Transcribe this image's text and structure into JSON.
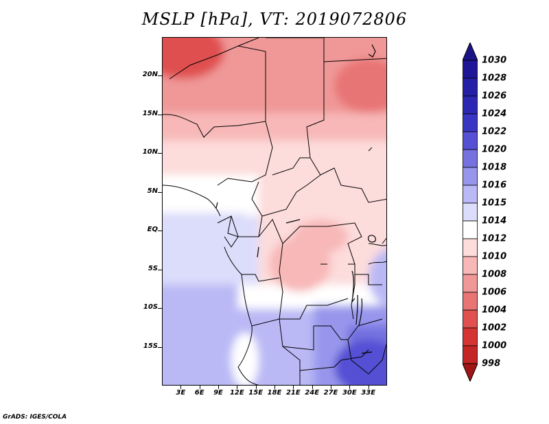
{
  "title": "MSLP [hPa], VT: 2019072806",
  "footer": "GrADS: IGES/COLA",
  "map": {
    "projection": "lat-lon",
    "lon_range_deg": [
      0,
      36
    ],
    "lat_range_deg": [
      -20,
      25
    ],
    "x_ticks": [
      {
        "value": 3,
        "label": "3E"
      },
      {
        "value": 6,
        "label": "6E"
      },
      {
        "value": 9,
        "label": "9E"
      },
      {
        "value": 12,
        "label": "12E"
      },
      {
        "value": 15,
        "label": "15E"
      },
      {
        "value": 18,
        "label": "18E"
      },
      {
        "value": 21,
        "label": "21E"
      },
      {
        "value": 24,
        "label": "24E"
      },
      {
        "value": 27,
        "label": "27E"
      },
      {
        "value": 30,
        "label": "30E"
      },
      {
        "value": 33,
        "label": "33E"
      }
    ],
    "y_ticks": [
      {
        "value": 20,
        "label": "20N"
      },
      {
        "value": 15,
        "label": "15N"
      },
      {
        "value": 10,
        "label": "10N"
      },
      {
        "value": 5,
        "label": "5N"
      },
      {
        "value": 0,
        "label": "EQ"
      },
      {
        "value": -5,
        "label": "5S"
      },
      {
        "value": -10,
        "label": "10S"
      },
      {
        "value": -15,
        "label": "15S"
      }
    ],
    "field_description": "lowest pressure (1004-1008 hPa) over the Sahara in the north, rising southward to 1022-1024 hPa over southern Africa"
  },
  "colorbar": {
    "levels": [
      {
        "label": "1030",
        "color": "#1e1696"
      },
      {
        "label": "1028",
        "color": "#251ea6"
      },
      {
        "label": "1026",
        "color": "#2d28b4"
      },
      {
        "label": "1024",
        "color": "#3a36c4"
      },
      {
        "label": "1022",
        "color": "#5550d4"
      },
      {
        "label": "1020",
        "color": "#7572e0"
      },
      {
        "label": "1018",
        "color": "#9896ec"
      },
      {
        "label": "1016",
        "color": "#bab9f5"
      },
      {
        "label": "1015",
        "color": "#dcdcfb"
      },
      {
        "label": "1014",
        "color": "#ffffff"
      },
      {
        "label": "1012",
        "color": "#fddcdc"
      },
      {
        "label": "1010",
        "color": "#f8b8b8"
      },
      {
        "label": "1008",
        "color": "#f09898"
      },
      {
        "label": "1006",
        "color": "#e87474"
      },
      {
        "label": "1004",
        "color": "#e05050"
      },
      {
        "label": "1002",
        "color": "#d43434"
      },
      {
        "label": "1000",
        "color": "#c42626"
      },
      {
        "label": "998",
        "color": "#b21c1c"
      }
    ],
    "over_color": "#1a1486",
    "under_color": "#a01616"
  }
}
